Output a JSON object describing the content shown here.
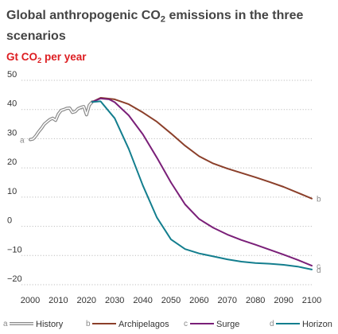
{
  "chart_data": {
    "type": "line",
    "title_part1": "Global anthropogenic CO",
    "title_sub": "2",
    "title_part2": " emissions in the three scenarios",
    "ylabel_part1": "Gt CO",
    "ylabel_sub": "2",
    "ylabel_part2": " per year",
    "xlim": [
      2000,
      2100
    ],
    "ylim": [
      -20,
      50
    ],
    "xticks": [
      2000,
      2010,
      2020,
      2030,
      2040,
      2050,
      2060,
      2070,
      2080,
      2090,
      2100
    ],
    "yticks": [
      -20,
      -10,
      0,
      10,
      20,
      30,
      40,
      50
    ],
    "grid": "horizontal-dotted",
    "legend_position": "bottom",
    "series": [
      {
        "name": "History",
        "key": "a",
        "color": "#8a8a8a",
        "style": "double",
        "end_label": "a",
        "x": [
          2000,
          2001,
          2002,
          2003,
          2004,
          2005,
          2006,
          2007,
          2008,
          2009,
          2010,
          2011,
          2012,
          2013,
          2014,
          2015,
          2016,
          2017,
          2018,
          2019,
          2020,
          2021,
          2022
        ],
        "y": [
          29.7,
          29.9,
          31.0,
          32.4,
          33.6,
          35.0,
          35.8,
          36.6,
          37.0,
          36.3,
          38.5,
          39.7,
          40.0,
          40.4,
          40.5,
          39.0,
          39.3,
          40.3,
          40.7,
          41.0,
          38.2,
          41.5,
          42.6
        ]
      },
      {
        "name": "Archipelagos",
        "key": "b",
        "color": "#8b3f2a",
        "style": "solid",
        "end_label": "b",
        "x": [
          2022,
          2025,
          2030,
          2035,
          2040,
          2045,
          2050,
          2055,
          2060,
          2065,
          2070,
          2075,
          2080,
          2085,
          2090,
          2095,
          2100
        ],
        "y": [
          42.6,
          44.0,
          43.5,
          41.8,
          39.0,
          35.8,
          31.8,
          27.6,
          24.0,
          21.5,
          19.8,
          18.3,
          16.8,
          15.2,
          13.5,
          11.5,
          9.5
        ]
      },
      {
        "name": "Surge",
        "key": "c",
        "color": "#7a1f78",
        "style": "solid",
        "end_label": "c",
        "x": [
          2022,
          2025,
          2028,
          2030,
          2035,
          2040,
          2045,
          2050,
          2055,
          2060,
          2065,
          2070,
          2075,
          2080,
          2085,
          2090,
          2095,
          2100
        ],
        "y": [
          42.6,
          43.8,
          43.5,
          42.5,
          38.0,
          31.5,
          23.5,
          15.0,
          7.5,
          2.5,
          -0.5,
          -2.8,
          -4.7,
          -6.3,
          -8.0,
          -9.7,
          -11.5,
          -13.5
        ]
      },
      {
        "name": "Horizon",
        "key": "d",
        "color": "#137e8e",
        "style": "solid",
        "end_label": "d",
        "x": [
          2022,
          2025,
          2030,
          2035,
          2040,
          2045,
          2050,
          2055,
          2060,
          2065,
          2070,
          2075,
          2080,
          2085,
          2090,
          2095,
          2100
        ],
        "y": [
          42.6,
          42.8,
          37.0,
          26.5,
          14.0,
          3.0,
          -4.5,
          -7.8,
          -9.3,
          -10.3,
          -11.3,
          -12.1,
          -12.6,
          -12.8,
          -13.2,
          -13.8,
          -14.8
        ]
      }
    ]
  }
}
